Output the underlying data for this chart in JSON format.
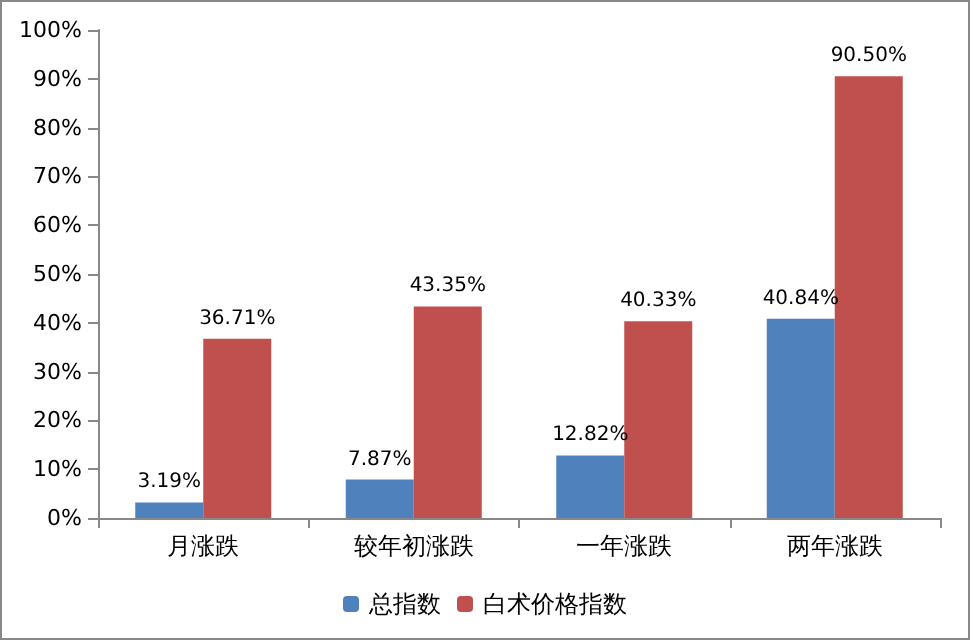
{
  "chart_data": {
    "type": "bar",
    "categories": [
      "月涨跌",
      "较年初涨跌",
      "一年涨跌",
      "两年涨跌"
    ],
    "series": [
      {
        "name": "总指数",
        "color": "#4f81bd",
        "values": [
          3.19,
          7.87,
          12.82,
          40.84
        ],
        "value_labels": [
          "3.19%",
          "7.87%",
          "12.82%",
          "40.84%"
        ]
      },
      {
        "name": "白术价格指数",
        "color": "#c0504d",
        "values": [
          36.71,
          43.35,
          40.33,
          90.5
        ],
        "value_labels": [
          "36.71%",
          "43.35%",
          "40.33%",
          "90.50%"
        ]
      }
    ],
    "ylim": [
      0,
      100
    ],
    "yticks": [
      {
        "value": 0,
        "label": "0%"
      },
      {
        "value": 10,
        "label": "10%"
      },
      {
        "value": 20,
        "label": "20%"
      },
      {
        "value": 30,
        "label": "30%"
      },
      {
        "value": 40,
        "label": "40%"
      },
      {
        "value": 50,
        "label": "50%"
      },
      {
        "value": 60,
        "label": "60%"
      },
      {
        "value": 70,
        "label": "70%"
      },
      {
        "value": 80,
        "label": "80%"
      },
      {
        "value": 90,
        "label": "90%"
      },
      {
        "value": 100,
        "label": "100%"
      }
    ],
    "grid": false,
    "legend": "bottom"
  }
}
